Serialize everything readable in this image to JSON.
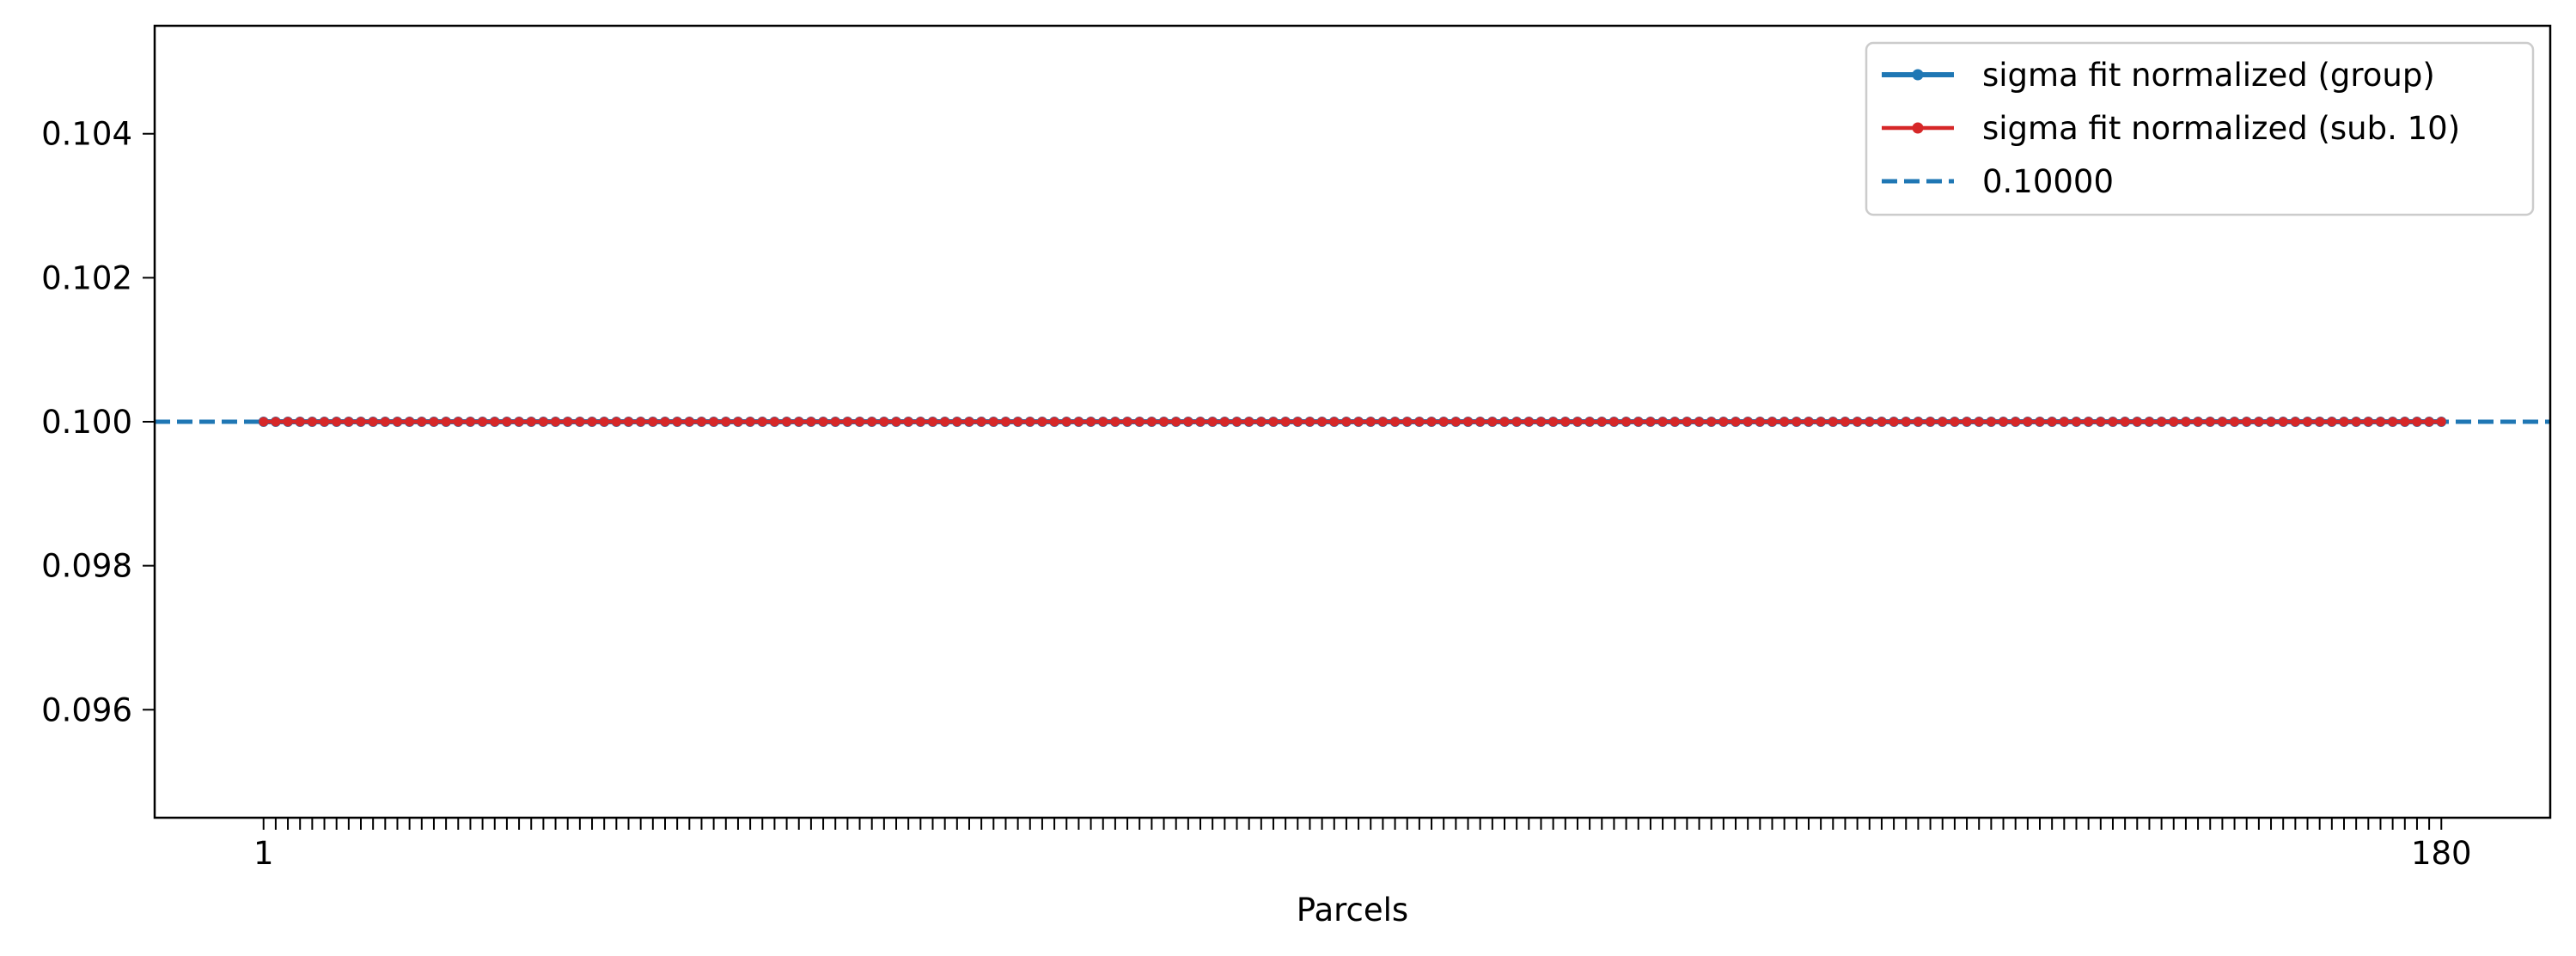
{
  "chart_data": {
    "type": "line",
    "title": "",
    "xlabel": "Parcels",
    "ylabel": "",
    "x_range": [
      1,
      180
    ],
    "xlim": [
      -7.95,
      188.95
    ],
    "ylim": [
      0.0945,
      0.1055
    ],
    "x_tick_labels": [
      "1",
      "180"
    ],
    "y_ticks": [
      0.096,
      0.098,
      0.1,
      0.102,
      0.104
    ],
    "y_tick_labels": [
      "0.096",
      "0.098",
      "0.100",
      "0.102",
      "0.104"
    ],
    "grid": false,
    "legend_position": "top-right",
    "series": [
      {
        "name": "sigma fit normalized (group)",
        "color": "#1f77b4",
        "style": "line-marker",
        "x_start": 1,
        "x_end": 180,
        "constant_value": 0.1
      },
      {
        "name": "sigma fit normalized (sub. 10)",
        "color": "#d62728",
        "style": "line-marker",
        "x_start": 1,
        "x_end": 180,
        "constant_value": 0.1
      },
      {
        "name": "0.10000",
        "color": "#1f77b4",
        "style": "dashed-hline",
        "constant_value": 0.1
      }
    ]
  }
}
